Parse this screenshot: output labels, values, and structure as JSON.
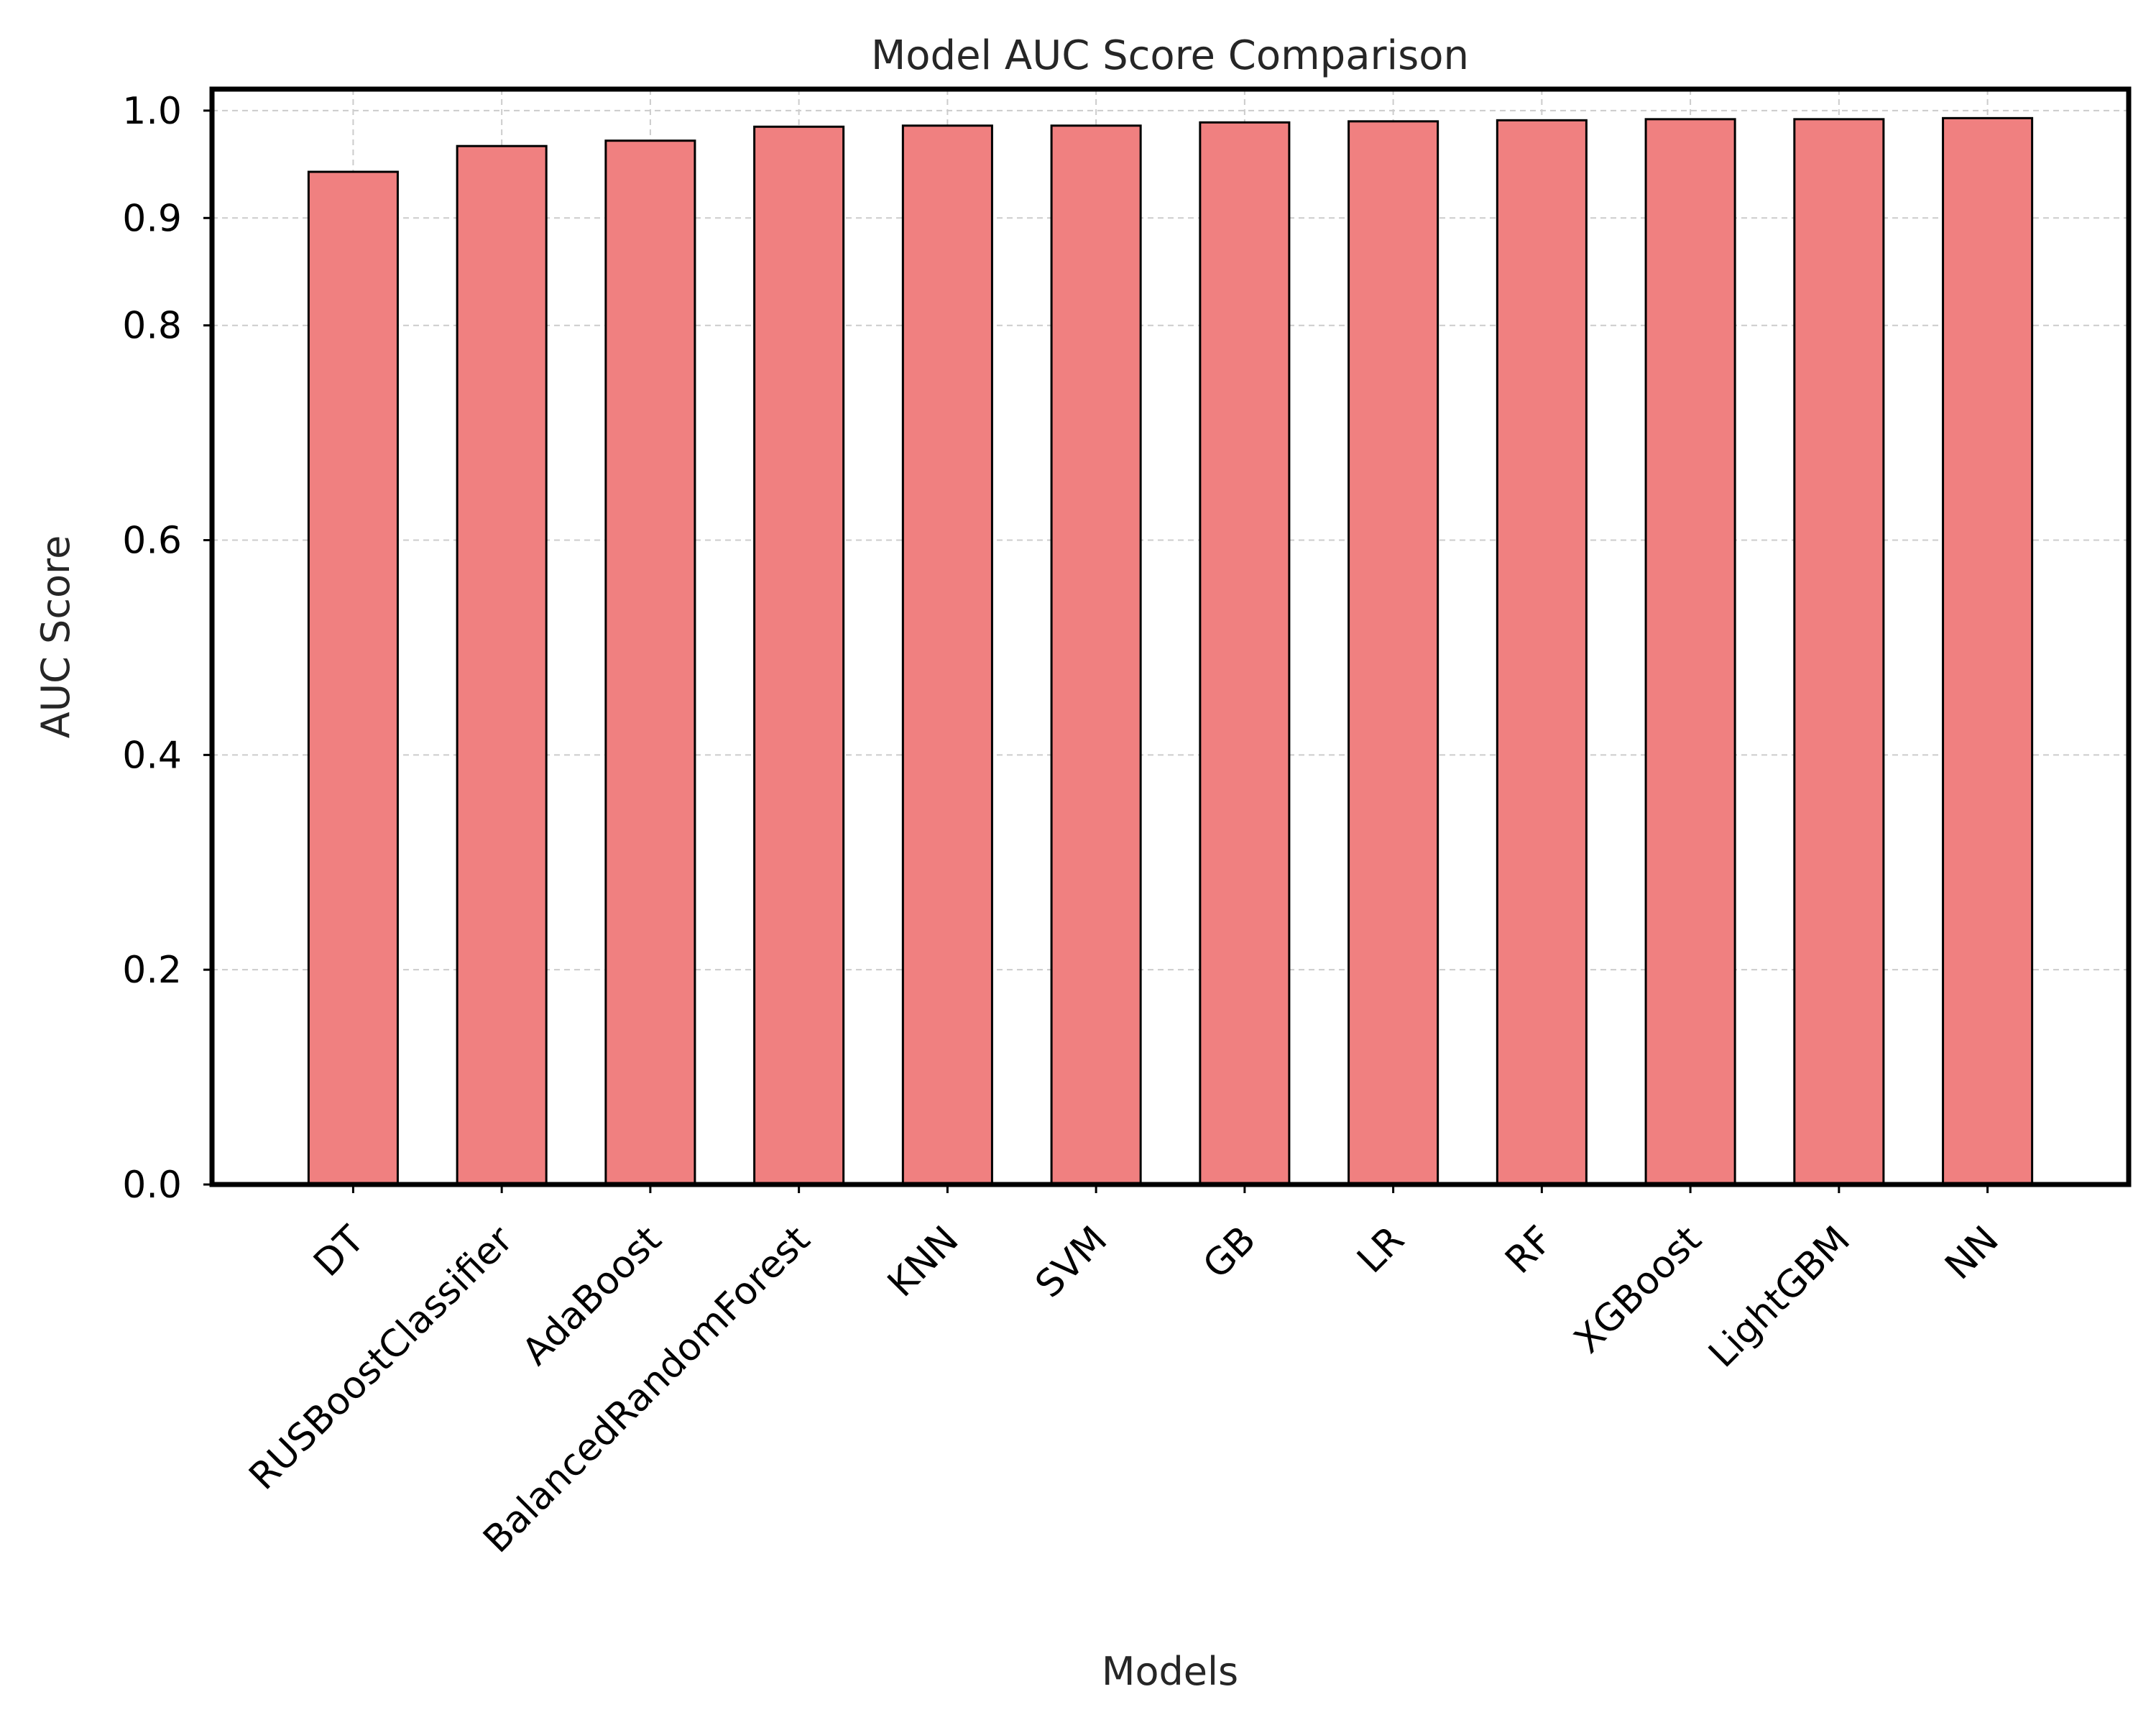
{
  "chart_data": {
    "type": "bar",
    "title": "Model AUC Score Comparison",
    "xlabel": "Models",
    "ylabel": "AUC Score",
    "categories": [
      "DT",
      "RUSBoostClassifier",
      "AdaBoost",
      "BalancedRandomForest",
      "KNN",
      "SVM",
      "GB",
      "LR",
      "RF",
      "XGBoost",
      "LightGBM",
      "NN"
    ],
    "values": [
      0.943,
      0.967,
      0.972,
      0.985,
      0.986,
      0.986,
      0.989,
      0.99,
      0.991,
      0.992,
      0.992,
      0.993
    ],
    "ylim": [
      0,
      1.02
    ],
    "yticks": [
      0.0,
      0.2,
      0.4,
      0.6,
      0.8,
      0.9,
      1.0
    ],
    "ytick_labels": [
      "0.0",
      "0.2",
      "0.4",
      "0.6",
      "0.8",
      "0.9",
      "1.0"
    ],
    "grid": true,
    "bar_color": "#f08080",
    "edge_color": "#000000"
  }
}
